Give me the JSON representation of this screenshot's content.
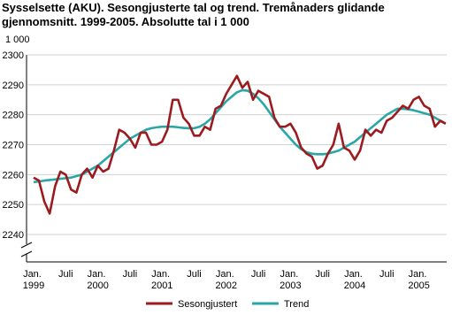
{
  "chart_data": {
    "type": "line",
    "title": "Sysselsette (AKU).  Sesongjusterte tal og trend. Tremånaders glidande gjennomsnitt. 1999-2005. Absolutte tal i 1 000",
    "y_unit": "1 000",
    "categories": [
      "Jan. 1999",
      null,
      null,
      null,
      null,
      null,
      "Juli",
      null,
      null,
      null,
      null,
      null,
      "Jan. 2000",
      null,
      null,
      null,
      null,
      null,
      "Juli",
      null,
      null,
      null,
      null,
      null,
      "Jan. 2001",
      null,
      null,
      null,
      null,
      null,
      "Juli",
      null,
      null,
      null,
      null,
      null,
      "Jan. 2002",
      null,
      null,
      null,
      null,
      null,
      "Juli",
      null,
      null,
      null,
      null,
      null,
      "Jan. 2003",
      null,
      null,
      null,
      null,
      null,
      "Juli",
      null,
      null,
      null,
      null,
      null,
      "Jan. 2004",
      null,
      null,
      null,
      null,
      null,
      "Juli",
      null,
      null,
      null,
      null,
      null,
      "Jan. 2005",
      null,
      null,
      null,
      null,
      null
    ],
    "series": [
      {
        "name": "Sesongjustert",
        "color": "#9b1b1f",
        "values": [
          2259,
          2258,
          2251,
          2247,
          2256,
          2261,
          2260,
          2255,
          2254,
          2260,
          2262,
          2259,
          2263,
          2261,
          2262,
          2268,
          2275,
          2274,
          2272,
          2269,
          2274,
          2274,
          2270,
          2270,
          2271,
          2275,
          2285,
          2285,
          2279,
          2277,
          2273,
          2273,
          2276,
          2275,
          2282,
          2283,
          2287,
          2290,
          2293,
          2289,
          2291,
          2285,
          2288,
          2287,
          2286,
          2279,
          2276,
          2276,
          2277,
          2274,
          2269,
          2267,
          2266,
          2262,
          2263,
          2267,
          2270,
          2277,
          2269,
          2268,
          2265,
          2268,
          2275,
          2273,
          2275,
          2274,
          2278,
          2279,
          2281,
          2283,
          2282,
          2285,
          2286,
          2283,
          2282,
          2276,
          2278,
          2277
        ]
      },
      {
        "name": "Trend",
        "color": "#2ba6a8",
        "values": [
          2257.5,
          2257.7,
          2258,
          2258.2,
          2258.4,
          2258.6,
          2258.8,
          2259,
          2259.5,
          2260,
          2261,
          2262,
          2263,
          2264.5,
          2266,
          2267.5,
          2269,
          2270.5,
          2272,
          2273,
          2274,
          2275,
          2275.5,
          2275.8,
          2276,
          2276,
          2276,
          2275.8,
          2275.6,
          2275.5,
          2275.5,
          2276,
          2277,
          2278.5,
          2280.5,
          2282.5,
          2284.5,
          2286,
          2287.5,
          2288.2,
          2288,
          2287,
          2285.5,
          2283.5,
          2281,
          2278.5,
          2276,
          2274,
          2272,
          2270,
          2268.5,
          2267.5,
          2267,
          2266.8,
          2266.8,
          2267,
          2267.5,
          2268,
          2269,
          2270,
          2271,
          2272.5,
          2274,
          2275.5,
          2277,
          2278.5,
          2280,
          2281,
          2282,
          2282,
          2281.8,
          2281.5,
          2281,
          2280.5,
          2280,
          2279,
          2278,
          2277
        ]
      }
    ],
    "ylim": [
      2240,
      2300
    ],
    "yticks": [
      2240,
      2250,
      2260,
      2270,
      2280,
      2290,
      2300
    ],
    "grid": true
  }
}
